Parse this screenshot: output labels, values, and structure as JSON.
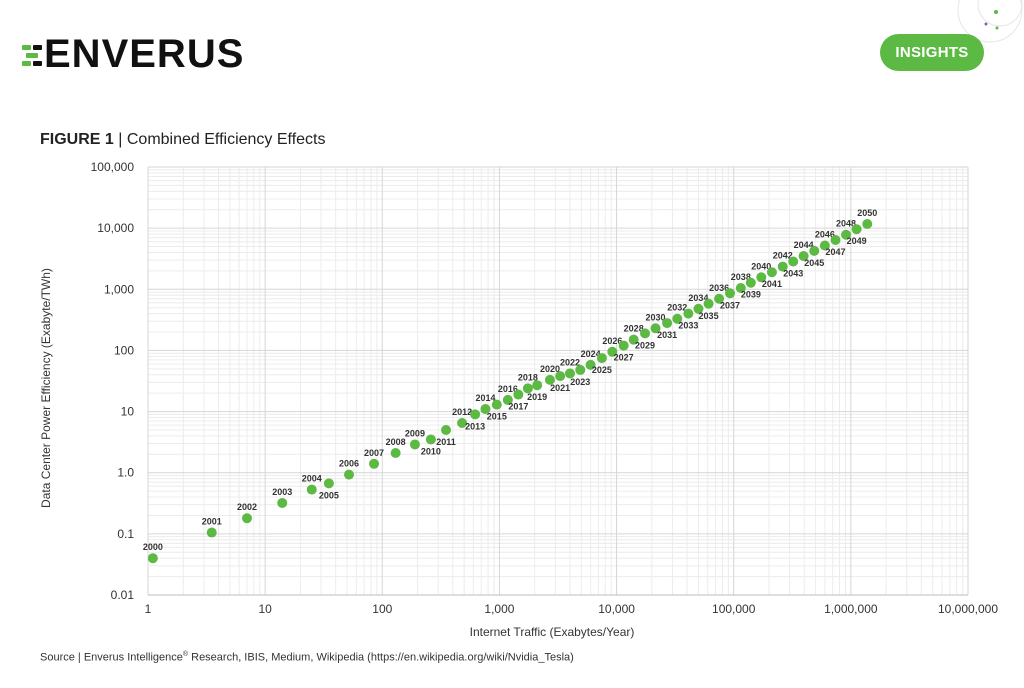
{
  "brand": {
    "name": "ENVERUS",
    "accent": "#5cb944"
  },
  "header": {
    "insights_label": "INSIGHTS"
  },
  "figure": {
    "label": "FIGURE 1",
    "separator": "|",
    "title": "Combined Efficiency Effects"
  },
  "source": {
    "prefix": "Source | Enverus Intelligence",
    "mark": "®",
    "suffix": " Research, IBIS, Medium, Wikipedia (https://en.wikipedia.org/wiki/Nvidia_Tesla)"
  },
  "chart_data": {
    "type": "scatter",
    "xlabel": "Internet Traffic (Exabytes/Year)",
    "ylabel": "Data Center Power Efficiency (Exabyte/TWh)",
    "xscale": "log",
    "yscale": "log",
    "xlim": [
      1,
      10000000
    ],
    "ylim": [
      0.01,
      100000
    ],
    "x_ticks": [
      {
        "v": 1,
        "label": "1"
      },
      {
        "v": 10,
        "label": "10"
      },
      {
        "v": 100,
        "label": "100"
      },
      {
        "v": 1000,
        "label": "1,000"
      },
      {
        "v": 10000,
        "label": "10,000"
      },
      {
        "v": 100000,
        "label": "100,000"
      },
      {
        "v": 1000000,
        "label": "1,000,000"
      },
      {
        "v": 10000000,
        "label": "10,000,000"
      }
    ],
    "y_ticks": [
      {
        "v": 0.01,
        "label": "0.01"
      },
      {
        "v": 0.1,
        "label": "0.1"
      },
      {
        "v": 1,
        "label": "1.0"
      },
      {
        "v": 10,
        "label": "10"
      },
      {
        "v": 100,
        "label": "100"
      },
      {
        "v": 1000,
        "label": "1,000"
      },
      {
        "v": 10000,
        "label": "10,000"
      },
      {
        "v": 100000,
        "label": "100,000"
      }
    ],
    "grid": true,
    "marker_color": "#5cb944",
    "points": [
      {
        "year": "2000",
        "x": 1.1,
        "y": 0.04,
        "label_pos": "above"
      },
      {
        "year": "2001",
        "x": 3.5,
        "y": 0.105,
        "label_pos": "above"
      },
      {
        "year": "2002",
        "x": 7,
        "y": 0.18,
        "label_pos": "above"
      },
      {
        "year": "2003",
        "x": 14,
        "y": 0.32,
        "label_pos": "above"
      },
      {
        "year": "2004",
        "x": 25,
        "y": 0.53,
        "label_pos": "above"
      },
      {
        "year": "2005",
        "x": 35,
        "y": 0.67,
        "label_pos": "below"
      },
      {
        "year": "2006",
        "x": 52,
        "y": 0.93,
        "label_pos": "above"
      },
      {
        "year": "2007",
        "x": 85,
        "y": 1.4,
        "label_pos": "above"
      },
      {
        "year": "2008",
        "x": 130,
        "y": 2.1,
        "label_pos": "above"
      },
      {
        "year": "2009",
        "x": 190,
        "y": 2.9,
        "label_pos": "above"
      },
      {
        "year": "2010",
        "x": 260,
        "y": 3.5,
        "label_pos": "below"
      },
      {
        "year": "2011",
        "x": 350,
        "y": 5,
        "label_pos": "below"
      },
      {
        "year": "2012",
        "x": 480,
        "y": 6.5,
        "label_pos": "above"
      },
      {
        "year": "2013",
        "x": 620,
        "y": 9,
        "label_pos": "below"
      },
      {
        "year": "2014",
        "x": 760,
        "y": 11,
        "label_pos": "above"
      },
      {
        "year": "2015",
        "x": 950,
        "y": 13,
        "label_pos": "below"
      },
      {
        "year": "2016",
        "x": 1180,
        "y": 15.5,
        "label_pos": "above"
      },
      {
        "year": "2017",
        "x": 1450,
        "y": 19,
        "label_pos": "below"
      },
      {
        "year": "2018",
        "x": 1750,
        "y": 24,
        "label_pos": "above"
      },
      {
        "year": "2019",
        "x": 2100,
        "y": 27,
        "label_pos": "below"
      },
      {
        "year": "2020",
        "x": 2700,
        "y": 33,
        "label_pos": "above"
      },
      {
        "year": "2021",
        "x": 3300,
        "y": 38,
        "label_pos": "below"
      },
      {
        "year": "2022",
        "x": 4000,
        "y": 42,
        "label_pos": "above"
      },
      {
        "year": "2023",
        "x": 4900,
        "y": 48,
        "label_pos": "below"
      },
      {
        "year": "2024",
        "x": 6000,
        "y": 58,
        "label_pos": "above"
      },
      {
        "year": "2025",
        "x": 7500,
        "y": 75,
        "label_pos": "below"
      },
      {
        "year": "2026",
        "x": 9200,
        "y": 95,
        "label_pos": "above"
      },
      {
        "year": "2027",
        "x": 11500,
        "y": 120,
        "label_pos": "below"
      },
      {
        "year": "2028",
        "x": 14000,
        "y": 150,
        "label_pos": "above"
      },
      {
        "year": "2029",
        "x": 17500,
        "y": 190,
        "label_pos": "below"
      },
      {
        "year": "2030",
        "x": 21500,
        "y": 230,
        "label_pos": "above"
      },
      {
        "year": "2031",
        "x": 27000,
        "y": 280,
        "label_pos": "below"
      },
      {
        "year": "2032",
        "x": 33000,
        "y": 330,
        "label_pos": "above"
      },
      {
        "year": "2033",
        "x": 41000,
        "y": 400,
        "label_pos": "below"
      },
      {
        "year": "2034",
        "x": 50000,
        "y": 480,
        "label_pos": "above"
      },
      {
        "year": "2035",
        "x": 61000,
        "y": 580,
        "label_pos": "below"
      },
      {
        "year": "2036",
        "x": 75000,
        "y": 700,
        "label_pos": "above"
      },
      {
        "year": "2037",
        "x": 93000,
        "y": 860,
        "label_pos": "below"
      },
      {
        "year": "2038",
        "x": 115000,
        "y": 1050,
        "label_pos": "above"
      },
      {
        "year": "2039",
        "x": 140000,
        "y": 1280,
        "label_pos": "below"
      },
      {
        "year": "2040",
        "x": 172000,
        "y": 1570,
        "label_pos": "above"
      },
      {
        "year": "2041",
        "x": 212000,
        "y": 1900,
        "label_pos": "below"
      },
      {
        "year": "2042",
        "x": 262000,
        "y": 2350,
        "label_pos": "above"
      },
      {
        "year": "2043",
        "x": 322000,
        "y": 2850,
        "label_pos": "below"
      },
      {
        "year": "2044",
        "x": 395000,
        "y": 3500,
        "label_pos": "above"
      },
      {
        "year": "2045",
        "x": 487000,
        "y": 4250,
        "label_pos": "below"
      },
      {
        "year": "2046",
        "x": 600000,
        "y": 5200,
        "label_pos": "above"
      },
      {
        "year": "2047",
        "x": 740000,
        "y": 6400,
        "label_pos": "below"
      },
      {
        "year": "2048",
        "x": 910000,
        "y": 7800,
        "label_pos": "above"
      },
      {
        "year": "2049",
        "x": 1120000,
        "y": 9600,
        "label_pos": "below"
      },
      {
        "year": "2050",
        "x": 1380000,
        "y": 11700,
        "label_pos": "above"
      }
    ]
  }
}
